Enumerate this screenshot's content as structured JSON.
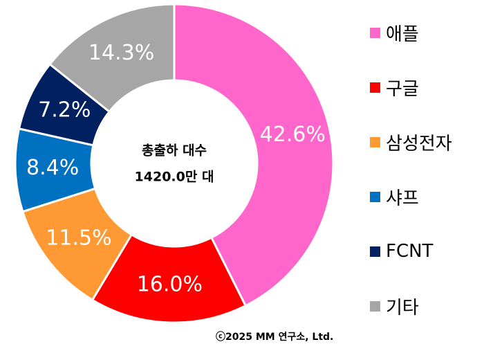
{
  "chart_data": {
    "type": "pie",
    "variant": "donut",
    "categories": [
      "애플",
      "구글",
      "삼성전자",
      "샤프",
      "FCNT",
      "기타"
    ],
    "values": [
      42.6,
      16.0,
      11.5,
      8.4,
      7.2,
      14.3
    ],
    "value_labels": [
      "42.6%",
      "16.0%",
      "11.5%",
      "8.4%",
      "7.2%",
      "14.3%"
    ],
    "unit": "%",
    "colors": [
      "#ff66cc",
      "#ff0000",
      "#ff9933",
      "#0070c0",
      "#002060",
      "#a6a6a6"
    ],
    "legend_position": "right",
    "center_text": {
      "line1": "총출하 대수",
      "line2": "1420.0만 대"
    },
    "title": ""
  },
  "footer": {
    "copyright": "ⓒ2025 MM 연구소, Ltd."
  }
}
